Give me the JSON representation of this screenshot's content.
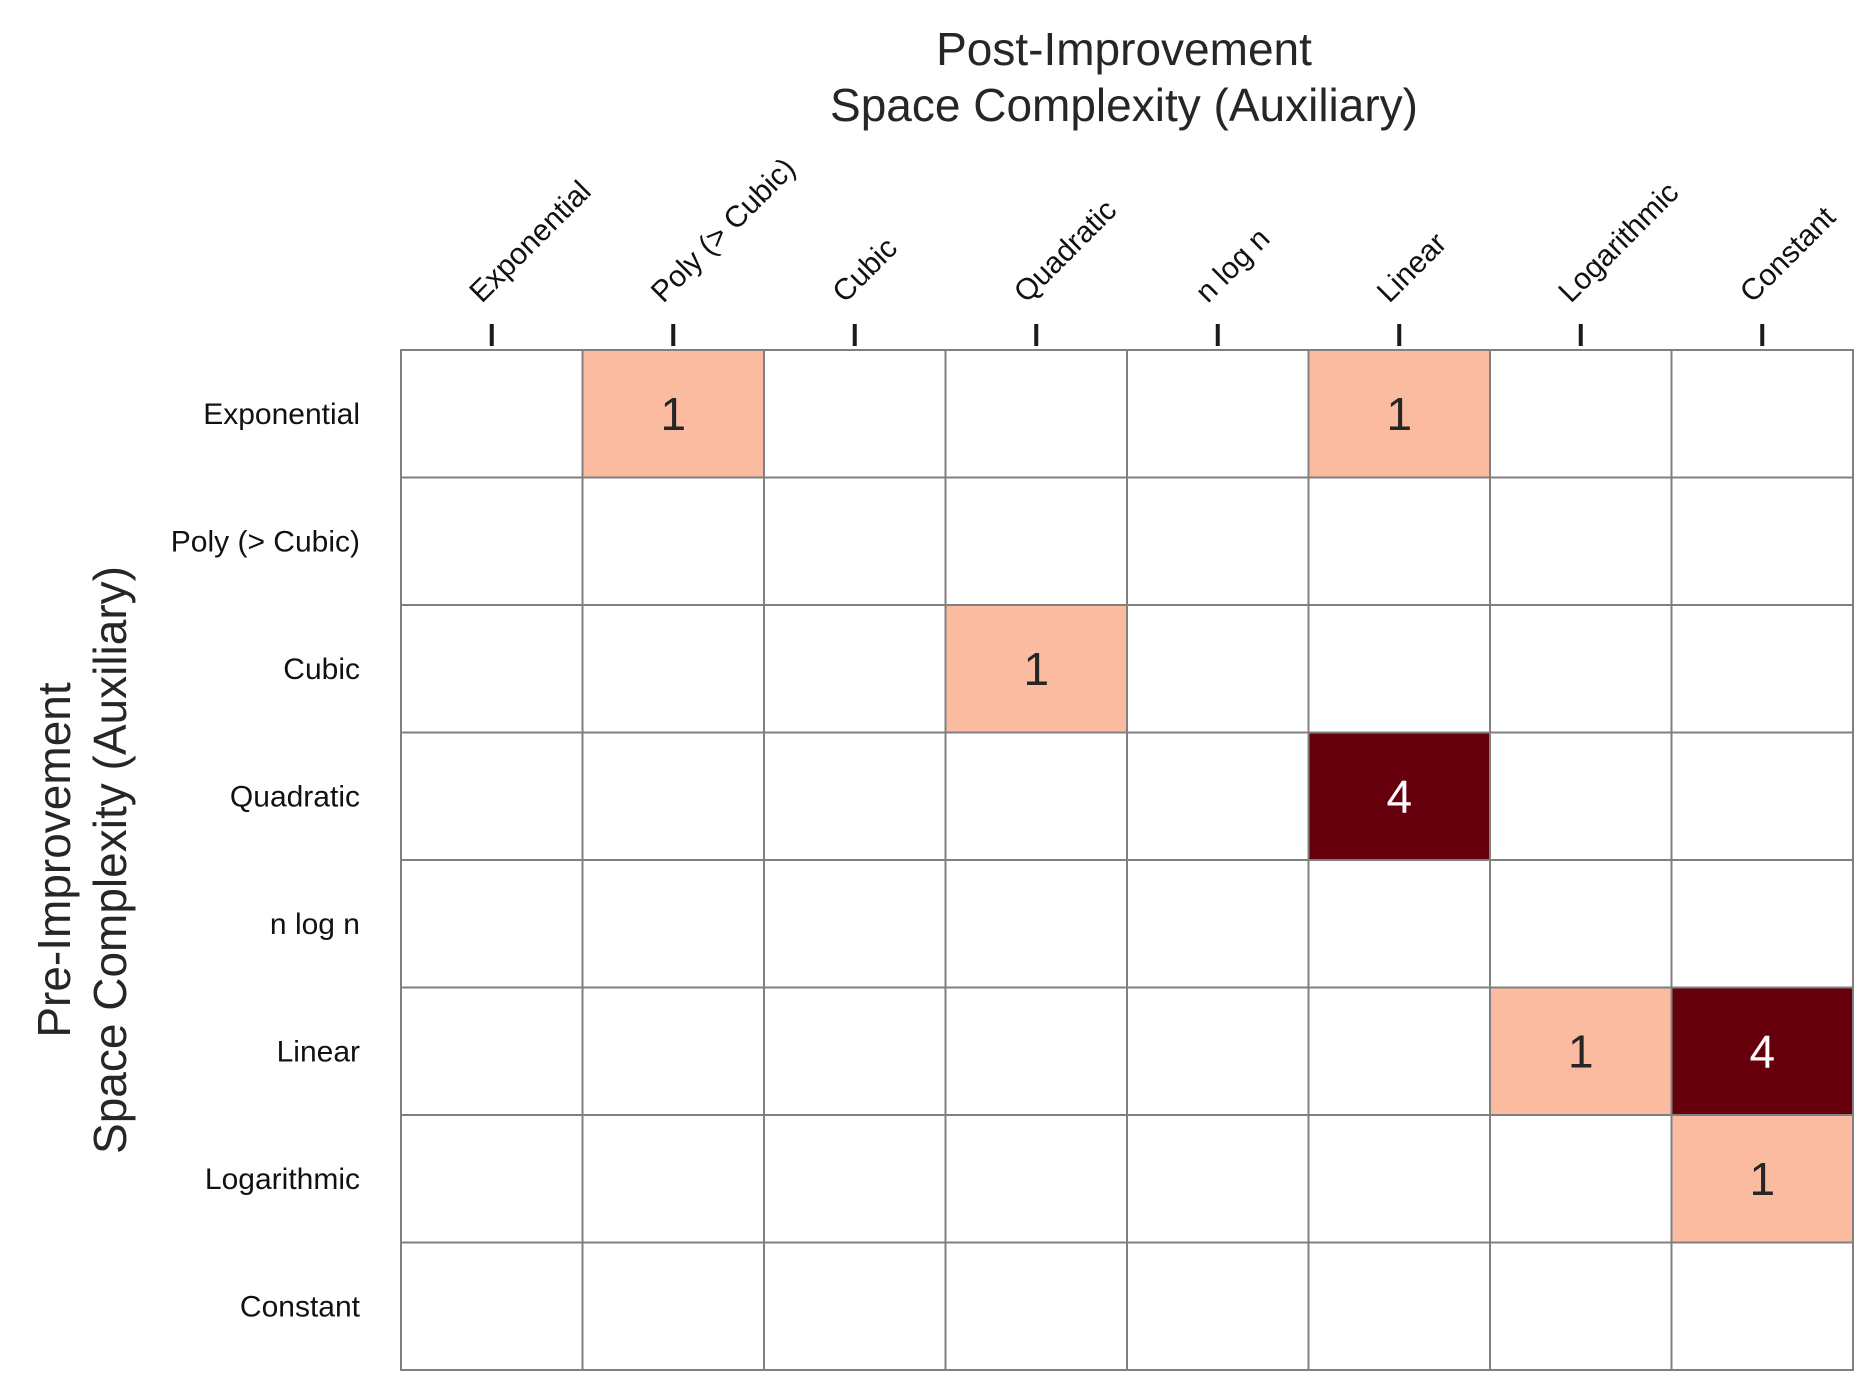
{
  "chart_data": {
    "type": "heatmap",
    "title": "Post-Improvement\nSpace Complexity (Auxiliary)",
    "xlabel": "Post-Improvement\nSpace Complexity (Auxiliary)",
    "ylabel": "Pre-Improvement\nSpace Complexity (Auxiliary)",
    "x_categories": [
      "Exponential",
      "Poly (> Cubic)",
      "Cubic",
      "Quadratic",
      "n log n",
      "Linear",
      "Logarithmic",
      "Constant"
    ],
    "y_categories": [
      "Exponential",
      "Poly (> Cubic)",
      "Cubic",
      "Quadratic",
      "n log n",
      "Linear",
      "Logarithmic",
      "Constant"
    ],
    "values": [
      [
        null,
        1,
        null,
        null,
        null,
        1,
        null,
        null
      ],
      [
        null,
        null,
        null,
        null,
        null,
        null,
        null,
        null
      ],
      [
        null,
        null,
        null,
        1,
        null,
        null,
        null,
        null
      ],
      [
        null,
        null,
        null,
        null,
        null,
        4,
        null,
        null
      ],
      [
        null,
        null,
        null,
        null,
        null,
        null,
        null,
        null
      ],
      [
        null,
        null,
        null,
        null,
        null,
        null,
        1,
        4
      ],
      [
        null,
        null,
        null,
        null,
        null,
        null,
        null,
        1
      ],
      [
        null,
        null,
        null,
        null,
        null,
        null,
        null,
        null
      ]
    ],
    "color_scale": {
      "low": "#fbbba0",
      "high": "#67000d",
      "empty": "#ffffff",
      "grid": "#808080"
    },
    "x_axis_position": "top",
    "x_tick_rotation_deg": -45
  }
}
